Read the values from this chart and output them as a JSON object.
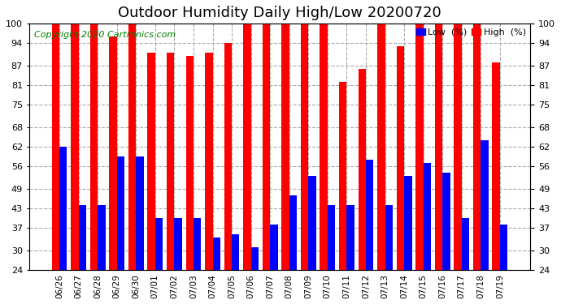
{
  "title": "Outdoor Humidity Daily High/Low 20200720",
  "copyright": "Copyright 2020 Cartronics.com",
  "categories": [
    "06/26",
    "06/27",
    "06/28",
    "06/29",
    "06/30",
    "07/01",
    "07/02",
    "07/03",
    "07/04",
    "07/05",
    "07/06",
    "07/07",
    "07/08",
    "07/09",
    "07/10",
    "07/11",
    "07/12",
    "07/13",
    "07/14",
    "07/15",
    "07/16",
    "07/17",
    "07/18",
    "07/19"
  ],
  "high_values": [
    100,
    100,
    100,
    96,
    100,
    91,
    91,
    90,
    91,
    94,
    100,
    100,
    100,
    100,
    100,
    82,
    86,
    100,
    93,
    100,
    100,
    100,
    100,
    88
  ],
  "low_values": [
    62,
    44,
    44,
    59,
    59,
    40,
    40,
    40,
    34,
    35,
    31,
    38,
    47,
    53,
    44,
    44,
    58,
    44,
    53,
    57,
    54,
    40,
    64,
    38
  ],
  "high_color": "#ff0000",
  "low_color": "#0000ff",
  "background_color": "#ffffff",
  "ylim_min": 24,
  "ylim_max": 100,
  "yticks": [
    24,
    30,
    37,
    43,
    49,
    56,
    62,
    68,
    75,
    81,
    87,
    94,
    100
  ],
  "grid_color": "#aaaaaa",
  "title_fontsize": 13,
  "copyright_fontsize": 8,
  "legend_low_label": "Low  (%)",
  "legend_high_label": "High  (%)"
}
